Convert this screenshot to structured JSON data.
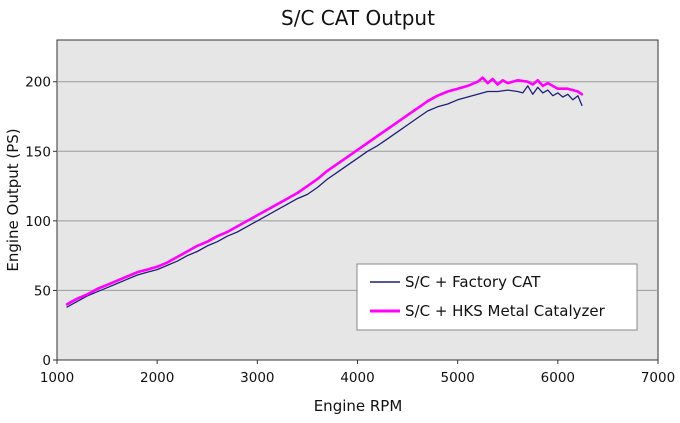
{
  "chart_data": {
    "type": "line",
    "title": "S/C CAT Output",
    "xlabel": "Engine RPM",
    "ylabel": "Engine Output (PS)",
    "xlim": [
      1000,
      7000
    ],
    "ylim": [
      0,
      230
    ],
    "xticks": [
      "1000",
      "2000",
      "3000",
      "4000",
      "5000",
      "6000",
      "7000"
    ],
    "yticks": [
      "0",
      "50",
      "100",
      "150",
      "200"
    ],
    "grid": "horizontal",
    "legend_position": "bottom-right",
    "series": [
      {
        "name": "S/C + Factory CAT",
        "color": "#1f1f7a",
        "x": [
          1100,
          1200,
          1300,
          1400,
          1500,
          1600,
          1700,
          1800,
          1900,
          2000,
          2100,
          2200,
          2300,
          2400,
          2500,
          2600,
          2700,
          2800,
          2900,
          3000,
          3100,
          3200,
          3300,
          3400,
          3500,
          3600,
          3700,
          3800,
          3900,
          4000,
          4100,
          4200,
          4300,
          4400,
          4500,
          4600,
          4700,
          4800,
          4900,
          5000,
          5100,
          5200,
          5300,
          5400,
          5500,
          5600,
          5650,
          5700,
          5750,
          5800,
          5850,
          5900,
          5950,
          6000,
          6050,
          6100,
          6150,
          6200,
          6240
        ],
        "y": [
          38,
          42,
          46,
          49,
          52,
          55,
          58,
          61,
          63,
          65,
          68,
          71,
          75,
          78,
          82,
          85,
          89,
          92,
          96,
          100,
          104,
          108,
          112,
          116,
          119,
          124,
          130,
          135,
          140,
          145,
          150,
          154,
          159,
          164,
          169,
          174,
          179,
          182,
          184,
          187,
          189,
          191,
          193,
          193,
          194,
          193,
          192,
          197,
          191,
          196,
          192,
          194,
          190,
          192,
          189,
          191,
          187,
          190,
          183
        ]
      },
      {
        "name": "S/C + HKS Metal Catalyzer",
        "color": "#ff00ff",
        "x": [
          1100,
          1200,
          1300,
          1400,
          1500,
          1600,
          1700,
          1800,
          1900,
          2000,
          2100,
          2200,
          2300,
          2400,
          2500,
          2600,
          2700,
          2800,
          2900,
          3000,
          3100,
          3200,
          3300,
          3400,
          3500,
          3600,
          3700,
          3800,
          3900,
          4000,
          4100,
          4200,
          4300,
          4400,
          4500,
          4600,
          4700,
          4800,
          4900,
          5000,
          5100,
          5200,
          5250,
          5300,
          5350,
          5400,
          5450,
          5500,
          5600,
          5700,
          5750,
          5800,
          5850,
          5900,
          6000,
          6100,
          6200,
          6240
        ],
        "y": [
          40,
          44,
          47,
          51,
          54,
          57,
          60,
          63,
          65,
          67,
          70,
          74,
          78,
          82,
          85,
          89,
          92,
          96,
          100,
          104,
          108,
          112,
          116,
          120,
          125,
          130,
          136,
          141,
          146,
          151,
          156,
          161,
          166,
          171,
          176,
          181,
          186,
          190,
          193,
          195,
          197,
          200,
          203,
          199,
          202,
          198,
          201,
          199,
          201,
          200,
          198,
          201,
          197,
          199,
          195,
          195,
          193,
          191
        ]
      }
    ]
  }
}
